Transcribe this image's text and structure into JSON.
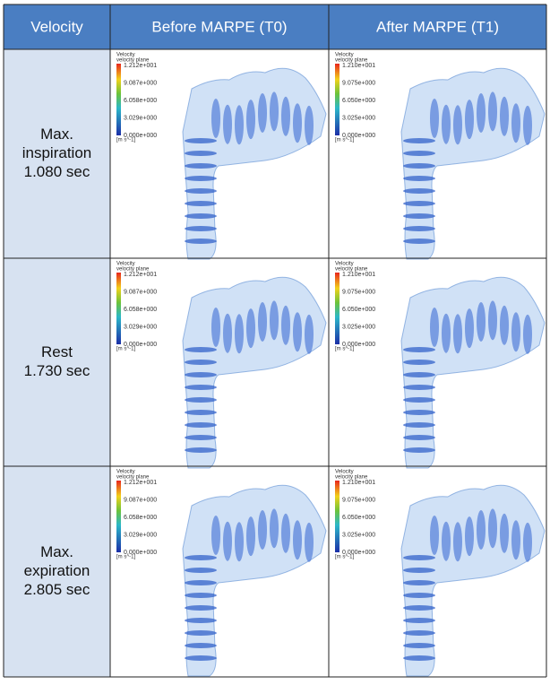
{
  "header": [
    "Velocity",
    "Before MARPE (T0)",
    "After MARPE (T1)"
  ],
  "legends": [
    {
      "title": "Velocity",
      "subtitle": "velocity plane",
      "ticks": [
        "1.212e+001",
        "9.087e+000",
        "6.058e+000",
        "3.029e+000",
        "0.000e+000"
      ],
      "unit": "[m s^-1]"
    },
    {
      "title": "Velocity",
      "subtitle": "velocity plane",
      "ticks": [
        "1.210e+001",
        "9.075e+000",
        "6.050e+000",
        "3.025e+000",
        "0.000e+000"
      ],
      "unit": "[m s^-1]"
    }
  ],
  "rows": [
    [
      "Max.",
      "inspiration",
      "1.080 sec"
    ],
    [
      "Rest",
      "1.730 sec"
    ],
    [
      "Max.",
      "expiration",
      "2.805 sec"
    ]
  ]
}
